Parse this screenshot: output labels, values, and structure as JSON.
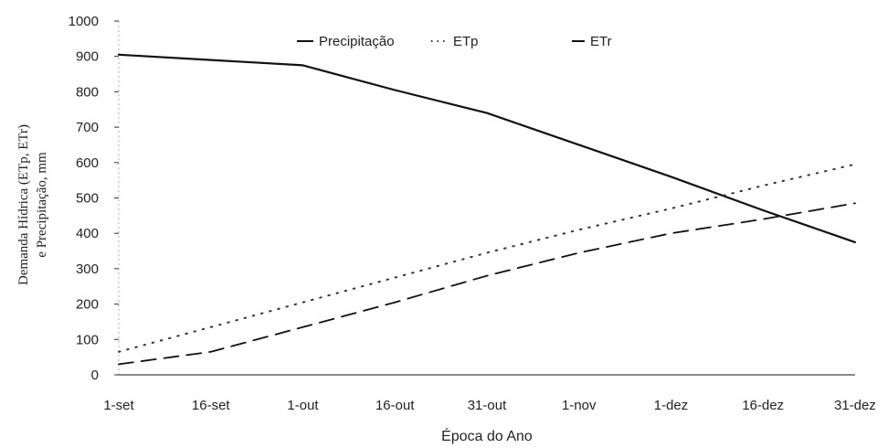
{
  "chart_data": {
    "type": "line",
    "xlabel": "Época do Ano",
    "ylabel": [
      "Demanda Hídrica (ETp, ETr)",
      "e Precipitação, mm"
    ],
    "categories": [
      "1-set",
      "16-set",
      "1-out",
      "16-out",
      "31-out",
      "1-nov",
      "1-dez",
      "16-dez",
      "31-dez"
    ],
    "ylim": [
      0,
      1000
    ],
    "yticks": [
      0,
      100,
      200,
      300,
      400,
      500,
      600,
      700,
      800,
      900,
      1000
    ],
    "grid": false,
    "legend_placement": "top",
    "series": [
      {
        "name": "Precipitação",
        "style": "solid",
        "color": "#111111",
        "values": [
          905,
          890,
          875,
          805,
          740,
          650,
          560,
          465,
          375
        ]
      },
      {
        "name": "ETp",
        "style": "dotted",
        "color": "#333333",
        "values": [
          65,
          135,
          205,
          275,
          345,
          410,
          470,
          535,
          595
        ]
      },
      {
        "name": "ETr",
        "style": "dashed",
        "color": "#111111",
        "values": [
          30,
          65,
          135,
          205,
          280,
          345,
          400,
          440,
          485
        ]
      }
    ]
  }
}
